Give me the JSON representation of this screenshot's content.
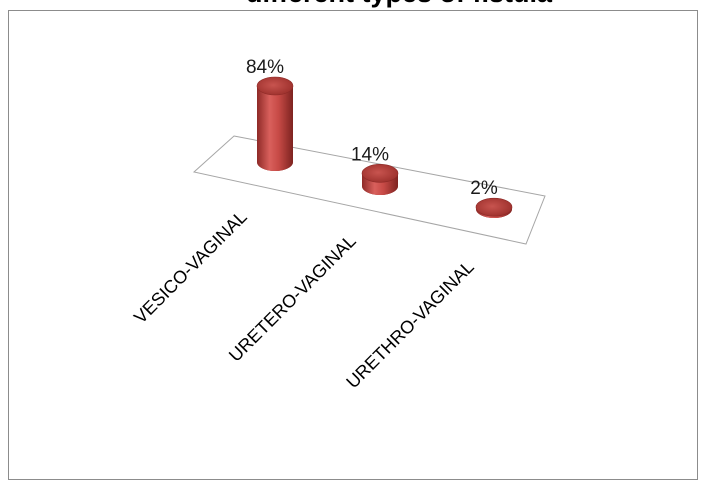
{
  "chart_data": {
    "type": "bar",
    "title": "different types of fistula",
    "categories": [
      "VESICO-VAGINAL",
      "URETERO-VAGINAL",
      "URETHRO-VAGINAL"
    ],
    "values": [
      84,
      14,
      2
    ],
    "data_labels": [
      "84%",
      "14%",
      "2%"
    ],
    "unit": "%",
    "bar_shape": "cylinder-3d",
    "bar_color": "#c0504d",
    "grid": false,
    "legend": "none"
  }
}
